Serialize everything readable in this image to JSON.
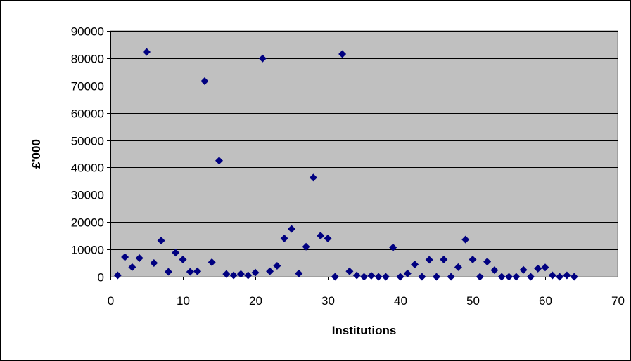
{
  "chart_data": {
    "type": "scatter",
    "title": "",
    "xlabel": "Institutions",
    "ylabel": "£'000",
    "xlim": [
      0,
      70
    ],
    "ylim": [
      0,
      90000
    ],
    "x_ticks": [
      0,
      10,
      20,
      30,
      40,
      50,
      60,
      70
    ],
    "y_ticks": [
      0,
      10000,
      20000,
      30000,
      40000,
      50000,
      60000,
      70000,
      80000,
      90000
    ],
    "x_tick_labels": [
      "0",
      "10",
      "20",
      "30",
      "40",
      "50",
      "60",
      "70"
    ],
    "y_tick_labels": [
      "0",
      "10000",
      "20000",
      "30000",
      "40000",
      "50000",
      "60000",
      "70000",
      "80000",
      "90000"
    ],
    "grid": "horizontal",
    "legend": "none",
    "colors": {
      "plot_area": "#c0c0c0",
      "marker": "#000080",
      "gridline": "#000000"
    },
    "marker": "diamond",
    "series": [
      {
        "points": [
          [
            1,
            500
          ],
          [
            2,
            7200
          ],
          [
            3,
            3500
          ],
          [
            4,
            6800
          ],
          [
            5,
            82300
          ],
          [
            6,
            5000
          ],
          [
            7,
            13200
          ],
          [
            8,
            1800
          ],
          [
            9,
            8800
          ],
          [
            10,
            6300
          ],
          [
            11,
            1800
          ],
          [
            12,
            2000
          ],
          [
            13,
            71600
          ],
          [
            14,
            5300
          ],
          [
            15,
            42500
          ],
          [
            16,
            1000
          ],
          [
            17,
            500
          ],
          [
            18,
            1000
          ],
          [
            19,
            500
          ],
          [
            20,
            1500
          ],
          [
            21,
            79900
          ],
          [
            22,
            2000
          ],
          [
            23,
            4000
          ],
          [
            24,
            14000
          ],
          [
            25,
            17500
          ],
          [
            26,
            1200
          ],
          [
            27,
            11000
          ],
          [
            28,
            36300
          ],
          [
            29,
            15000
          ],
          [
            30,
            14000
          ],
          [
            31,
            0
          ],
          [
            32,
            81500
          ],
          [
            33,
            2000
          ],
          [
            34,
            500
          ],
          [
            35,
            0
          ],
          [
            36,
            400
          ],
          [
            37,
            0
          ],
          [
            38,
            0
          ],
          [
            39,
            10700
          ],
          [
            40,
            0
          ],
          [
            41,
            1200
          ],
          [
            42,
            4500
          ],
          [
            43,
            0
          ],
          [
            44,
            6200
          ],
          [
            45,
            0
          ],
          [
            46,
            6300
          ],
          [
            47,
            0
          ],
          [
            48,
            3500
          ],
          [
            49,
            13600
          ],
          [
            50,
            6300
          ],
          [
            51,
            0
          ],
          [
            52,
            5500
          ],
          [
            53,
            2400
          ],
          [
            54,
            0
          ],
          [
            55,
            0
          ],
          [
            56,
            0
          ],
          [
            57,
            2500
          ],
          [
            58,
            0
          ],
          [
            59,
            3000
          ],
          [
            60,
            3400
          ],
          [
            61,
            500
          ],
          [
            62,
            0
          ],
          [
            63,
            500
          ],
          [
            64,
            0
          ]
        ]
      }
    ]
  }
}
